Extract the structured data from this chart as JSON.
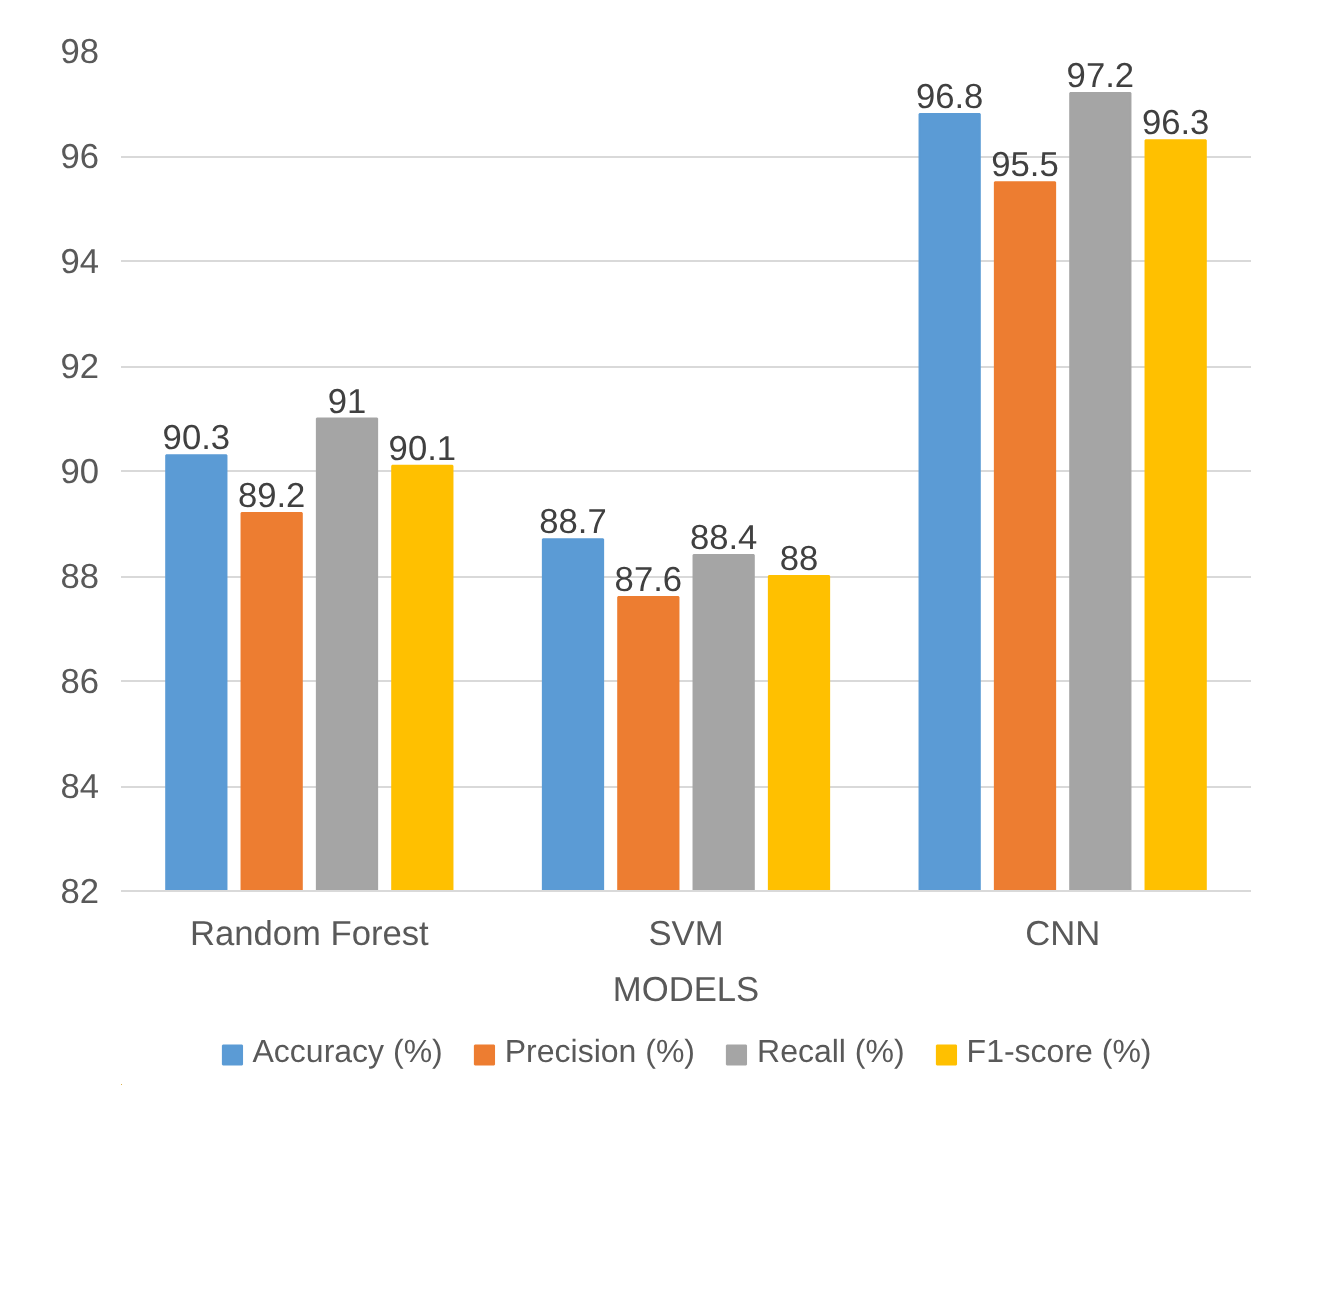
{
  "chart_data": {
    "type": "bar",
    "xlabel": "MODELS",
    "categories": [
      "Random Forest",
      "SVM",
      "CNN"
    ],
    "series": [
      {
        "name": "Accuracy (%)",
        "color": "#5b9bd5",
        "values": [
          90.3,
          88.7,
          96.8
        ]
      },
      {
        "name": "Precision (%)",
        "color": "#ed7d31",
        "values": [
          89.2,
          87.6,
          95.5
        ]
      },
      {
        "name": "Recall (%)",
        "color": "#a5a5a5",
        "values": [
          91,
          88.4,
          97.2
        ]
      },
      {
        "name": "F1-score (%)",
        "color": "#ffc000",
        "values": [
          90.1,
          88,
          96.3
        ]
      }
    ],
    "ylim": [
      82,
      98
    ],
    "yticks": [
      82,
      84,
      86,
      88,
      90,
      92,
      94,
      96,
      98
    ],
    "grid": "y",
    "data_labels": true,
    "legend": "bottom"
  }
}
